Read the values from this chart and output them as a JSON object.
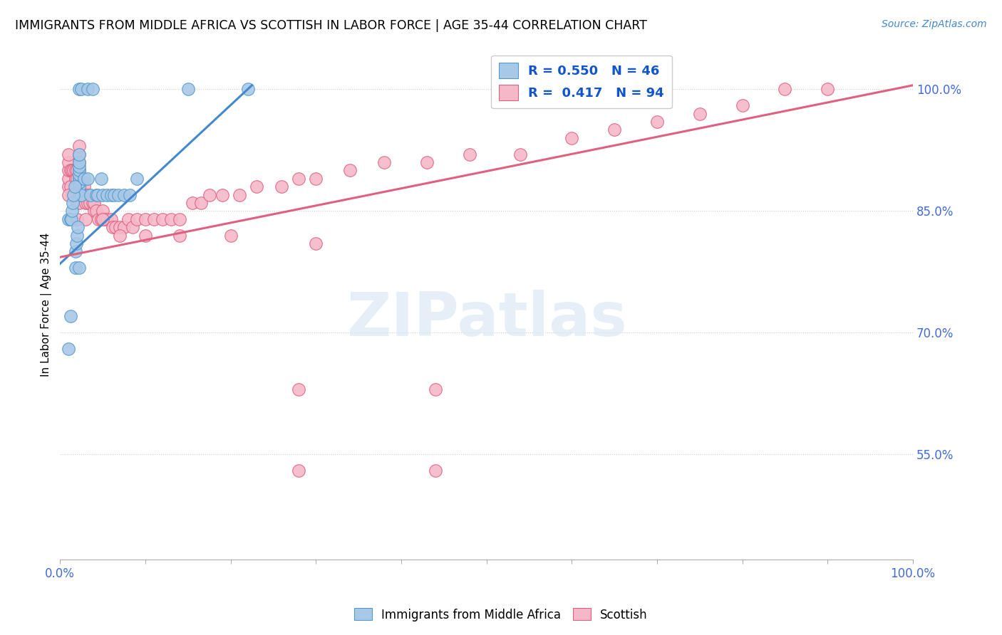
{
  "title": "IMMIGRANTS FROM MIDDLE AFRICA VS SCOTTISH IN LABOR FORCE | AGE 35-44 CORRELATION CHART",
  "source": "Source: ZipAtlas.com",
  "ylabel": "In Labor Force | Age 35-44",
  "xlim": [
    0.0,
    1.0
  ],
  "ylim": [
    0.42,
    1.05
  ],
  "yticks": [
    0.55,
    0.7,
    0.85,
    1.0
  ],
  "ytick_labels": [
    "55.0%",
    "70.0%",
    "85.0%",
    "100.0%"
  ],
  "blue_color": "#a8c8e8",
  "blue_edge_color": "#5599cc",
  "pink_color": "#f5b8c8",
  "pink_edge_color": "#e06080",
  "blue_line_color": "#4488cc",
  "pink_line_color": "#e06080",
  "blue_line_x0": 0.0,
  "blue_line_y0": 0.785,
  "blue_line_x1": 0.225,
  "blue_line_y1": 1.005,
  "pink_line_x0": 0.0,
  "pink_line_y0": 0.793,
  "pink_line_x1": 1.0,
  "pink_line_y1": 1.005,
  "blue_x": [
    0.022,
    0.022,
    0.022,
    0.022,
    0.022,
    0.022,
    0.022,
    0.022,
    0.022,
    0.022,
    0.022,
    0.025,
    0.025,
    0.028,
    0.032,
    0.032,
    0.036,
    0.038,
    0.042,
    0.044,
    0.048,
    0.05,
    0.055,
    0.06,
    0.063,
    0.068,
    0.075,
    0.082,
    0.09,
    0.01,
    0.012,
    0.013,
    0.014,
    0.015,
    0.016,
    0.017,
    0.018,
    0.019,
    0.02,
    0.021,
    0.01,
    0.012,
    0.018,
    0.022,
    0.15,
    0.22
  ],
  "blue_y": [
    0.87,
    0.875,
    0.88,
    0.885,
    0.89,
    0.895,
    0.9,
    0.905,
    0.91,
    0.92,
    1.0,
    0.87,
    1.0,
    0.89,
    0.89,
    1.0,
    0.87,
    1.0,
    0.87,
    0.87,
    0.89,
    0.87,
    0.87,
    0.87,
    0.87,
    0.87,
    0.87,
    0.87,
    0.89,
    0.84,
    0.84,
    0.84,
    0.85,
    0.86,
    0.87,
    0.88,
    0.8,
    0.81,
    0.82,
    0.83,
    0.68,
    0.72,
    0.78,
    0.78,
    1.0,
    1.0
  ],
  "pink_x": [
    0.01,
    0.01,
    0.01,
    0.01,
    0.01,
    0.012,
    0.012,
    0.014,
    0.014,
    0.016,
    0.016,
    0.018,
    0.018,
    0.018,
    0.018,
    0.02,
    0.02,
    0.02,
    0.02,
    0.02,
    0.022,
    0.022,
    0.022,
    0.022,
    0.022,
    0.022,
    0.022,
    0.022,
    0.024,
    0.024,
    0.026,
    0.028,
    0.028,
    0.03,
    0.03,
    0.032,
    0.032,
    0.035,
    0.038,
    0.04,
    0.04,
    0.042,
    0.045,
    0.048,
    0.05,
    0.052,
    0.055,
    0.06,
    0.062,
    0.065,
    0.07,
    0.075,
    0.08,
    0.085,
    0.09,
    0.1,
    0.11,
    0.12,
    0.13,
    0.14,
    0.155,
    0.165,
    0.175,
    0.19,
    0.21,
    0.23,
    0.26,
    0.28,
    0.3,
    0.34,
    0.38,
    0.43,
    0.48,
    0.54,
    0.6,
    0.65,
    0.7,
    0.75,
    0.8,
    0.85,
    0.9,
    0.28,
    0.44,
    0.28,
    0.44,
    0.01,
    0.02,
    0.03,
    0.05,
    0.07,
    0.1,
    0.14,
    0.2,
    0.3
  ],
  "pink_y": [
    0.88,
    0.89,
    0.9,
    0.91,
    0.92,
    0.88,
    0.9,
    0.87,
    0.9,
    0.87,
    0.9,
    0.87,
    0.88,
    0.89,
    0.9,
    0.86,
    0.87,
    0.88,
    0.89,
    0.9,
    0.86,
    0.87,
    0.88,
    0.89,
    0.9,
    0.91,
    0.92,
    0.93,
    0.87,
    0.88,
    0.87,
    0.87,
    0.88,
    0.86,
    0.87,
    0.86,
    0.87,
    0.86,
    0.86,
    0.85,
    0.86,
    0.85,
    0.84,
    0.84,
    0.85,
    0.84,
    0.84,
    0.84,
    0.83,
    0.83,
    0.83,
    0.83,
    0.84,
    0.83,
    0.84,
    0.84,
    0.84,
    0.84,
    0.84,
    0.84,
    0.86,
    0.86,
    0.87,
    0.87,
    0.87,
    0.88,
    0.88,
    0.89,
    0.89,
    0.9,
    0.91,
    0.91,
    0.92,
    0.92,
    0.94,
    0.95,
    0.96,
    0.97,
    0.98,
    1.0,
    1.0,
    0.63,
    0.63,
    0.53,
    0.53,
    0.87,
    0.84,
    0.84,
    0.84,
    0.82,
    0.82,
    0.82,
    0.82,
    0.81
  ]
}
